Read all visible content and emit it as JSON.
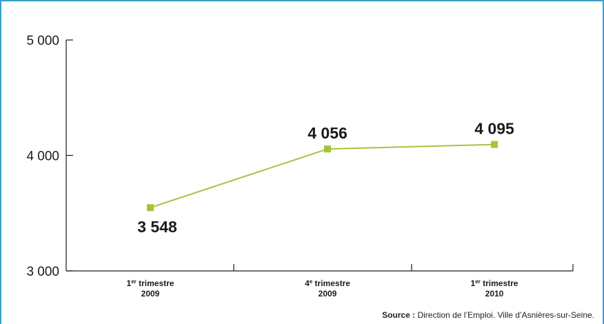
{
  "chart_data": {
    "type": "line",
    "categories": [
      {
        "main": "1",
        "sup": "er",
        "word": " trimestre",
        "year": "2009"
      },
      {
        "main": "4",
        "sup": "e",
        "word": " trimestre",
        "year": "2009"
      },
      {
        "main": "1",
        "sup": "er",
        "word": " trimestre",
        "year": "2010"
      }
    ],
    "values": [
      3548,
      4056,
      4095
    ],
    "data_labels": [
      "3 548",
      "4 056",
      "4 095"
    ],
    "ylim": [
      3000,
      5000
    ],
    "yticks": [
      {
        "value": 3000,
        "label": "3 000"
      },
      {
        "value": 4000,
        "label": "4 000"
      },
      {
        "value": 5000,
        "label": "5 000"
      }
    ],
    "series_color": "#a4c43a",
    "grid": false
  },
  "source": {
    "prefix": "Source :",
    "text": " Direction de l’Emploi. Ville d’Asnières-sur-Seine."
  },
  "colors": {
    "frame": "#3b9fc7",
    "axis": "#1a1a1a",
    "line": "#a4c43a"
  }
}
